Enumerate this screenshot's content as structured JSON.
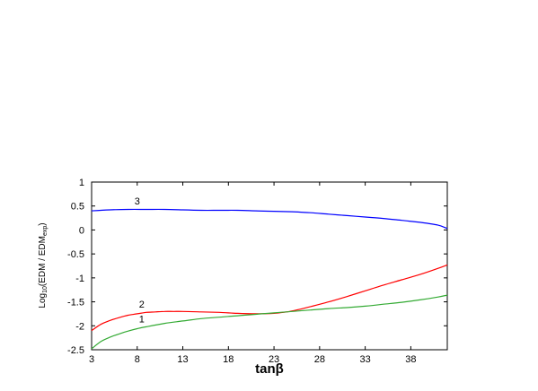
{
  "chart_data": {
    "type": "line",
    "xlabel": "tanβ",
    "ylabel": {
      "prefix": "Log",
      "prefix_sub": "10",
      "main": "(EDM / EDM",
      "main_sub": "exp",
      "suffix": ")"
    },
    "xlim": [
      3,
      42
    ],
    "ylim": [
      -2.5,
      1
    ],
    "xticks": [
      "3",
      "8",
      "13",
      "18",
      "23",
      "28",
      "33",
      "38"
    ],
    "yticks": [
      "1",
      "0.5",
      "0",
      "-0.5",
      "-1",
      "-1.5",
      "-2",
      "-2.5"
    ],
    "grid": false,
    "series": [
      {
        "name": "3",
        "color": "#0000ff",
        "x": [
          3,
          5,
          7,
          9,
          11,
          13,
          15,
          17,
          19,
          21,
          23,
          25,
          27,
          29,
          31,
          33,
          35,
          37,
          39,
          41,
          42
        ],
        "y": [
          0.4,
          0.42,
          0.43,
          0.43,
          0.43,
          0.42,
          0.41,
          0.41,
          0.41,
          0.4,
          0.39,
          0.38,
          0.36,
          0.33,
          0.3,
          0.27,
          0.24,
          0.2,
          0.16,
          0.1,
          0.03
        ]
      },
      {
        "name": "2",
        "color": "#ff0000",
        "x": [
          3,
          4,
          5,
          6,
          7,
          8,
          9,
          10,
          11,
          12,
          13,
          15,
          17,
          19,
          21,
          23,
          24,
          25,
          27,
          29,
          31,
          33,
          35,
          37,
          39,
          41,
          42
        ],
        "y": [
          -2.1,
          -1.97,
          -1.89,
          -1.83,
          -1.78,
          -1.75,
          -1.72,
          -1.71,
          -1.7,
          -1.7,
          -1.7,
          -1.71,
          -1.72,
          -1.74,
          -1.75,
          -1.74,
          -1.72,
          -1.69,
          -1.6,
          -1.5,
          -1.39,
          -1.27,
          -1.15,
          -1.04,
          -0.93,
          -0.8,
          -0.73
        ]
      },
      {
        "name": "1",
        "color": "#33aa33",
        "x": [
          3,
          4,
          5,
          6,
          7,
          8,
          9,
          11,
          13,
          15,
          17,
          19,
          21,
          23,
          25,
          27,
          29,
          31,
          33,
          35,
          37,
          39,
          41,
          42
        ],
        "y": [
          -2.48,
          -2.33,
          -2.24,
          -2.17,
          -2.11,
          -2.06,
          -2.02,
          -1.95,
          -1.9,
          -1.85,
          -1.82,
          -1.79,
          -1.76,
          -1.73,
          -1.7,
          -1.67,
          -1.64,
          -1.62,
          -1.59,
          -1.55,
          -1.51,
          -1.46,
          -1.4,
          -1.36
        ]
      }
    ],
    "annotations": [
      {
        "text": "3",
        "x": 8,
        "y": 0.53
      },
      {
        "text": "2",
        "x": 8.5,
        "y": -1.62
      },
      {
        "text": "1",
        "x": 8.5,
        "y": -1.93
      }
    ]
  }
}
